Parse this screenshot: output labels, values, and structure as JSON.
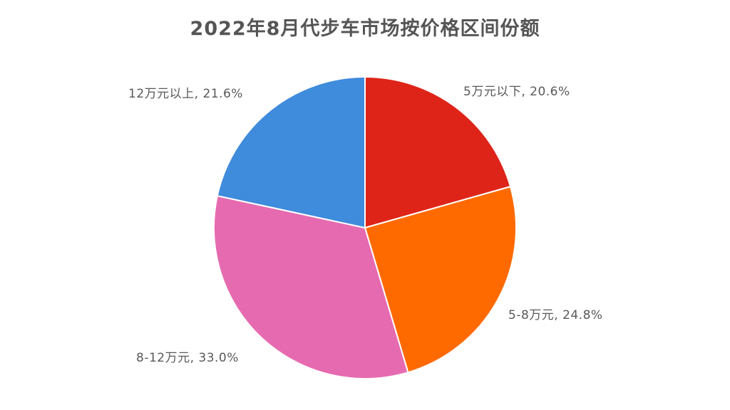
{
  "chart_data": {
    "type": "pie",
    "title": "2022年8月代步车市场按价格区间份额",
    "categories": [
      "5万元以下",
      "5-8万元",
      "8-12万元",
      "12万元以上"
    ],
    "values": [
      20.6,
      24.8,
      33.0,
      21.6
    ],
    "unit": "%",
    "colors": [
      "#de2418",
      "#ff6a00",
      "#e66ab0",
      "#3f8bdc"
    ],
    "start_angle_deg": 0,
    "direction": "clockwise",
    "labels": [
      {
        "text": "5万元以下, 20.6%"
      },
      {
        "text": "5-8万元, 24.8%"
      },
      {
        "text": "8-12万元, 33.0%"
      },
      {
        "text": "12万元以上, 21.6%"
      }
    ],
    "legend": "none"
  }
}
